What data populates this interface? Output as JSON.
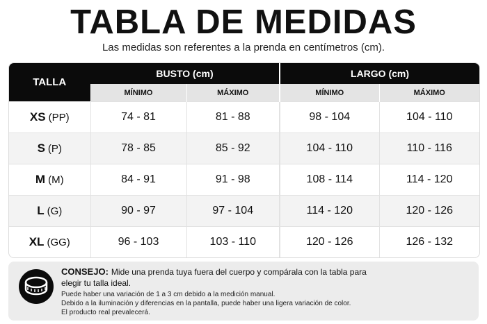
{
  "header": {
    "title": "TABLA DE MEDIDAS",
    "subtitle": "Las medidas son referentes a la prenda en centímetros (cm)."
  },
  "table": {
    "size_header": "TALLA",
    "groups": [
      {
        "label": "BUSTO (cm)",
        "min": "MÍNIMO",
        "max": "MÁXIMO"
      },
      {
        "label": "LARGO (cm)",
        "min": "MÍNIMO",
        "max": "MÁXIMO"
      }
    ],
    "rows": [
      {
        "size": "XS",
        "alt": "(PP)",
        "cells": [
          "74 - 81",
          "81 - 88",
          "98 - 104",
          "104 - 110"
        ]
      },
      {
        "size": "S",
        "alt": "(P)",
        "cells": [
          "78 - 85",
          "85 - 92",
          "104 - 110",
          "110 - 116"
        ]
      },
      {
        "size": "M",
        "alt": "(M)",
        "cells": [
          "84 - 91",
          "91 - 98",
          "108 - 114",
          "114 - 120"
        ]
      },
      {
        "size": "L",
        "alt": "(G)",
        "cells": [
          "90 - 97",
          "97 - 104",
          "114 - 120",
          "120 - 126"
        ]
      },
      {
        "size": "XL",
        "alt": "(GG)",
        "cells": [
          "96 - 103",
          "103 - 110",
          "120 - 126",
          "126 - 132"
        ]
      }
    ]
  },
  "tip": {
    "label": "CONSEJO:",
    "text": "Mide una prenda tuya fuera del cuerpo y compárala con la tabla para elegir tu talla ideal.",
    "notes": [
      "Puede haber una variación de 1 a 3 cm debido a la medición manual.",
      "Debido a la iluminación y diferencias en la pantalla, puede haber una ligera variación de color.",
      "El producto real prevalecerá."
    ]
  }
}
